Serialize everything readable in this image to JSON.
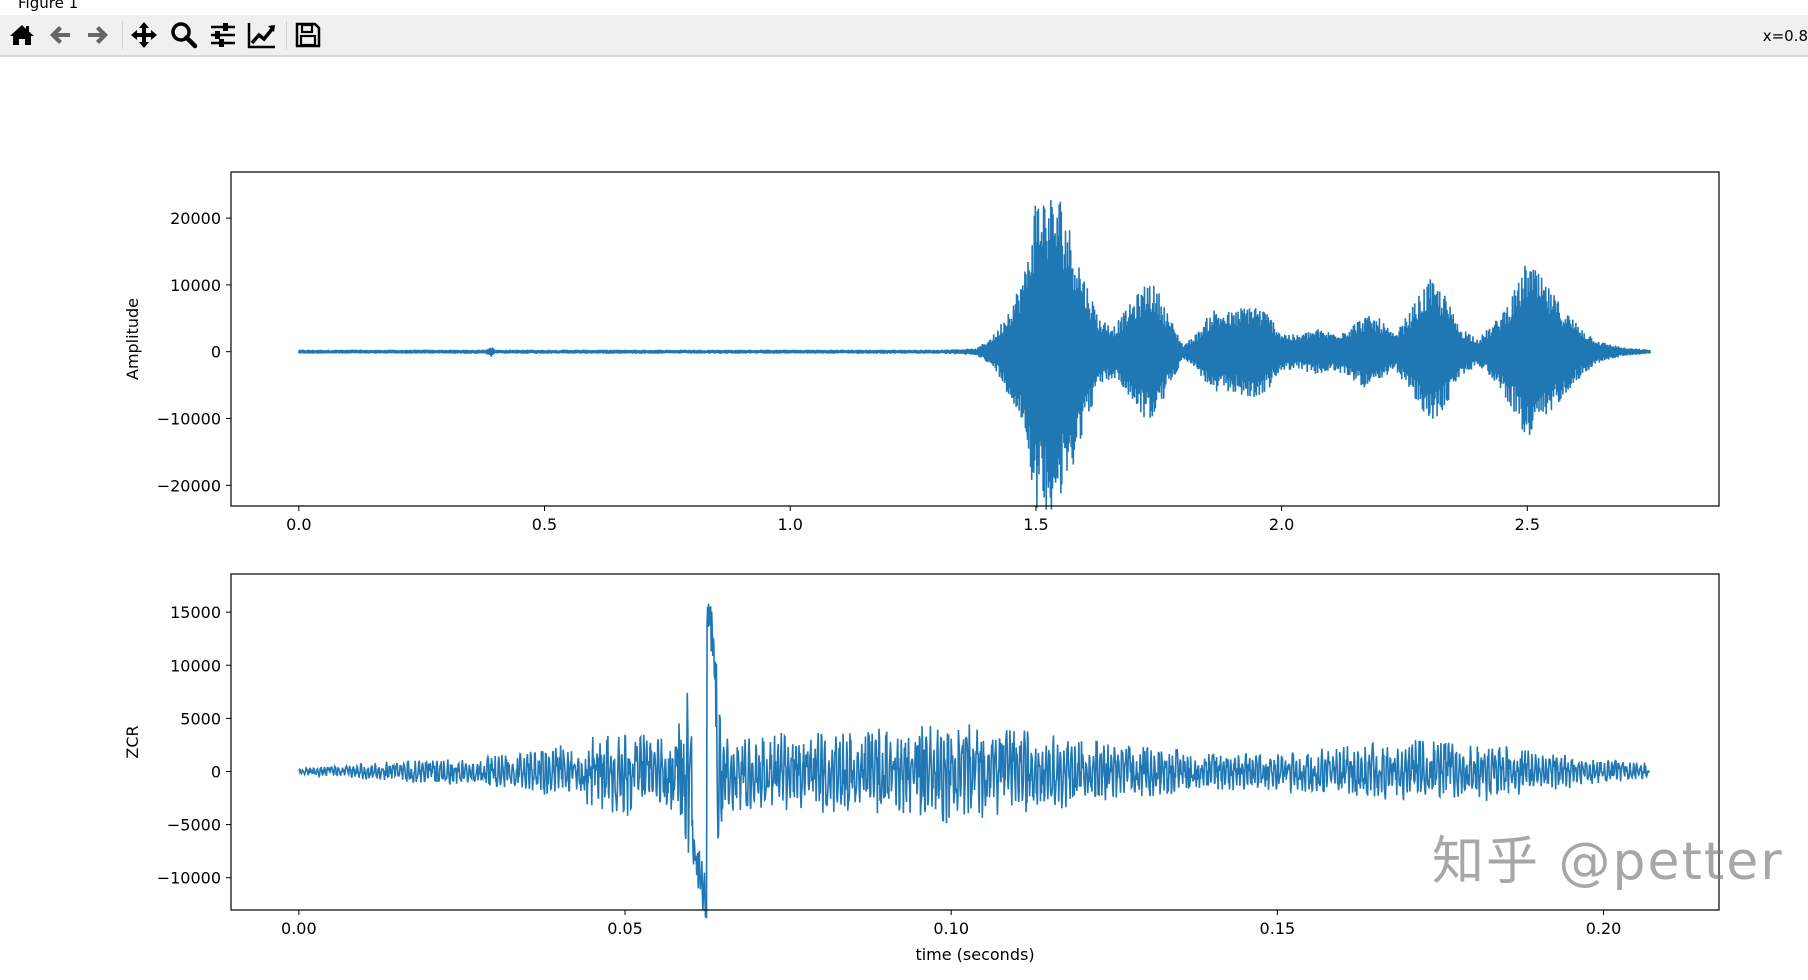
{
  "window": {
    "title": "Figure 1"
  },
  "toolbar": {
    "buttons": [
      {
        "name": "home",
        "icon": "home-icon"
      },
      {
        "name": "back",
        "icon": "arrow-left-icon"
      },
      {
        "name": "forward",
        "icon": "arrow-right-icon"
      },
      {
        "name": "pan",
        "icon": "move-icon"
      },
      {
        "name": "zoom",
        "icon": "magnifier-icon"
      },
      {
        "name": "configure-subplots",
        "icon": "sliders-icon"
      },
      {
        "name": "edit-axis",
        "icon": "line-chart-icon"
      },
      {
        "name": "save",
        "icon": "floppy-disk-icon"
      }
    ],
    "coords": "x=0.8"
  },
  "watermark": "知乎 @petter",
  "chart_data": [
    {
      "type": "line",
      "title": "",
      "xlabel": "",
      "ylabel": "Amplitude",
      "xlim": [
        -0.138,
        2.89
      ],
      "ylim": [
        -23100,
        26900
      ],
      "xticks": [
        0.0,
        0.5,
        1.0,
        1.5,
        2.0,
        2.5
      ],
      "xtick_labels": [
        "0.0",
        "0.5",
        "1.0",
        "1.5",
        "2.0",
        "2.5"
      ],
      "yticks": [
        -20000,
        -10000,
        0,
        10000,
        20000
      ],
      "ytick_labels": [
        "−20000",
        "−10000",
        "0",
        "10000",
        "20000"
      ],
      "grid": false,
      "color": "#1f77b4",
      "x_range": [
        0,
        2.75
      ],
      "envelope": [
        [
          0,
          300
        ],
        [
          0.38,
          300
        ],
        [
          0.39,
          900
        ],
        [
          0.4,
          300
        ],
        [
          1.3,
          300
        ],
        [
          1.38,
          500
        ],
        [
          1.42,
          3000
        ],
        [
          1.46,
          9000
        ],
        [
          1.48,
          13000
        ],
        [
          1.5,
          24000
        ],
        [
          1.55,
          23500
        ],
        [
          1.58,
          16000
        ],
        [
          1.6,
          11000
        ],
        [
          1.63,
          5000
        ],
        [
          1.66,
          4000
        ],
        [
          1.7,
          8000
        ],
        [
          1.73,
          11000
        ],
        [
          1.75,
          9000
        ],
        [
          1.78,
          4000
        ],
        [
          1.8,
          1000
        ],
        [
          1.83,
          3000
        ],
        [
          1.86,
          6500
        ],
        [
          1.9,
          6000
        ],
        [
          1.94,
          7500
        ],
        [
          1.97,
          6000
        ],
        [
          2.0,
          3000
        ],
        [
          2.03,
          2500
        ],
        [
          2.07,
          3500
        ],
        [
          2.1,
          3000
        ],
        [
          2.13,
          3500
        ],
        [
          2.17,
          5500
        ],
        [
          2.2,
          5000
        ],
        [
          2.23,
          2500
        ],
        [
          2.26,
          6000
        ],
        [
          2.3,
          11000
        ],
        [
          2.33,
          9000
        ],
        [
          2.36,
          4000
        ],
        [
          2.4,
          2000
        ],
        [
          2.44,
          5000
        ],
        [
          2.48,
          10000
        ],
        [
          2.5,
          14000
        ],
        [
          2.54,
          10000
        ],
        [
          2.58,
          6000
        ],
        [
          2.62,
          3000
        ],
        [
          2.65,
          1500
        ],
        [
          2.7,
          600
        ],
        [
          2.75,
          300
        ]
      ]
    },
    {
      "type": "line",
      "title": "",
      "xlabel": "time (seconds)",
      "ylabel": "ZCR",
      "xlim": [
        -0.0104,
        0.2177
      ],
      "ylim": [
        -13040,
        18590
      ],
      "xticks": [
        0.0,
        0.05,
        0.1,
        0.15,
        0.2
      ],
      "xtick_labels": [
        "0.00",
        "0.05",
        "0.10",
        "0.15",
        "0.20"
      ],
      "yticks": [
        -10000,
        -5000,
        0,
        5000,
        10000,
        15000
      ],
      "ytick_labels": [
        "−10000",
        "−5000",
        "0",
        "5000",
        "10000",
        "15000"
      ],
      "grid": false,
      "color": "#1f77b4",
      "x_range": [
        0,
        0.207
      ],
      "envelope": [
        [
          0,
          300
        ],
        [
          0.01,
          800
        ],
        [
          0.02,
          1200
        ],
        [
          0.03,
          1600
        ],
        [
          0.04,
          2500
        ],
        [
          0.045,
          3500
        ],
        [
          0.05,
          4500
        ],
        [
          0.055,
          3500
        ],
        [
          0.058,
          5000
        ],
        [
          0.06,
          9500
        ],
        [
          0.061,
          11500
        ],
        [
          0.063,
          17000
        ],
        [
          0.065,
          4500
        ],
        [
          0.07,
          3500
        ],
        [
          0.08,
          4000
        ],
        [
          0.09,
          4500
        ],
        [
          0.1,
          5000
        ],
        [
          0.11,
          4000
        ],
        [
          0.12,
          3500
        ],
        [
          0.13,
          2500
        ],
        [
          0.14,
          1800
        ],
        [
          0.15,
          2000
        ],
        [
          0.16,
          2500
        ],
        [
          0.17,
          3000
        ],
        [
          0.18,
          3000
        ],
        [
          0.19,
          2000
        ],
        [
          0.2,
          1200
        ],
        [
          0.207,
          800
        ]
      ]
    }
  ]
}
